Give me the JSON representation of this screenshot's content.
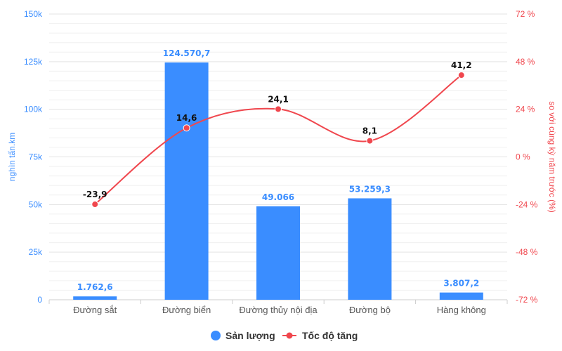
{
  "chart_data": {
    "type": "bar",
    "categories": [
      "Đường sắt",
      "Đường biển",
      "Đường thủy nội địa",
      "Đường bộ",
      "Hàng không"
    ],
    "series": [
      {
        "name": "Sản lượng",
        "type": "bar",
        "axis": "left",
        "color": "#3a8dff",
        "values": [
          1762.6,
          124570.7,
          49066,
          53259.3,
          3807.2
        ],
        "labels": [
          "1.762,6",
          "124.570,7",
          "49.066",
          "53.259,3",
          "3.807,2"
        ]
      },
      {
        "name": "Tốc độ tăng",
        "type": "line",
        "axis": "right",
        "color": "#f0474e",
        "values": [
          -23.9,
          14.6,
          24.1,
          8.1,
          41.2
        ],
        "labels": [
          "-23,9",
          "14,6",
          "24,1",
          "8,1",
          "41,2"
        ]
      }
    ],
    "left_axis": {
      "label": "nghìn tấn.km",
      "range": [
        0,
        150000
      ],
      "ticks": [
        0,
        25000,
        50000,
        75000,
        100000,
        125000,
        150000
      ],
      "tick_labels": [
        "0",
        "25k",
        "50k",
        "75k",
        "100k",
        "125k",
        "150k"
      ],
      "color": "#3a8dff"
    },
    "right_axis": {
      "label": "so với cùng kỳ năm trước (%)",
      "range": [
        -72,
        72
      ],
      "ticks": [
        -72,
        -48,
        -24,
        0,
        24,
        48,
        72
      ],
      "tick_labels": [
        "-72 %",
        "-48 %",
        "-24 %",
        "0 %",
        "24 %",
        "48 %",
        "72 %"
      ],
      "color": "#f0474e"
    },
    "grid": true,
    "legend": "bottom-center"
  }
}
